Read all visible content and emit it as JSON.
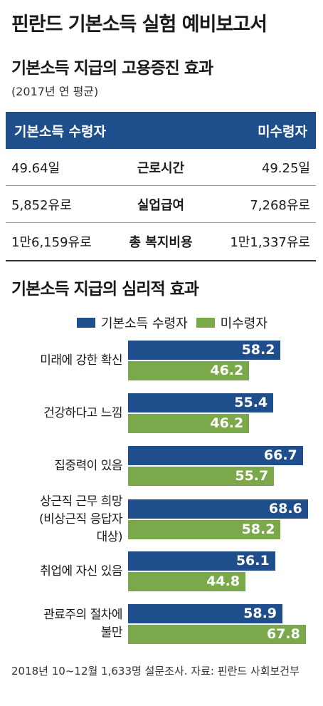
{
  "title": "핀란드 기본소득 실험 예비보고서",
  "employment_section": {
    "title": "기본소득 지급의 고용증진 효과",
    "subtitle": "(2017년 연 평균)",
    "header_left": "기본소득 수령자",
    "header_right": "미수령자",
    "rows": [
      {
        "left": "49.64일",
        "label": "근로시간",
        "right": "49.25일"
      },
      {
        "left": "5,852유로",
        "label": "실업급여",
        "right": "7,268유로"
      },
      {
        "left": "1만6,159유로",
        "label": "총 복지비용",
        "right": "1만1,337유로"
      }
    ]
  },
  "psych_section": {
    "title": "기본소득 지급의 심리적 효과"
  },
  "footnote": "2018년 10~12월 1,633명 설문조사. 자료: 핀란드 사회보건부",
  "colors": {
    "recipient": "#1f4e8c",
    "non_recipient": "#7aa84a"
  },
  "chart_data": {
    "type": "bar",
    "orientation": "horizontal",
    "title": "기본소득 지급의 심리적 효과",
    "categories": [
      "미래에 강한 확신",
      "건강하다고 느낌",
      "집중력이 있음",
      "상근직 근무 희망 (비상근직 응답자 대상)",
      "취업에 자신 있음",
      "관료주의 절차에 불만"
    ],
    "category_lines": [
      [
        "미래에 강한 확신"
      ],
      [
        "건강하다고 느낌"
      ],
      [
        "집중력이 있음"
      ],
      [
        "상근직 근무 희망",
        "(비상근직 응답자",
        "대상)"
      ],
      [
        "취업에 자신 있음"
      ],
      [
        "관료주의 절차에",
        "불만"
      ]
    ],
    "series": [
      {
        "name": "기본소득 수령자",
        "values": [
          58.2,
          55.4,
          66.7,
          68.6,
          56.1,
          58.9
        ],
        "labels": [
          "58.2",
          "55.4",
          "66.7",
          "68.6",
          "56.1",
          "58.9"
        ]
      },
      {
        "name": "미수령자",
        "values": [
          46.2,
          46.2,
          55.7,
          58.2,
          44.8,
          67.8
        ],
        "labels": [
          "46.2",
          "46.2",
          "55.7",
          "58.2",
          "44.8",
          "67.8"
        ]
      }
    ],
    "legend": "top",
    "grid": false
  }
}
